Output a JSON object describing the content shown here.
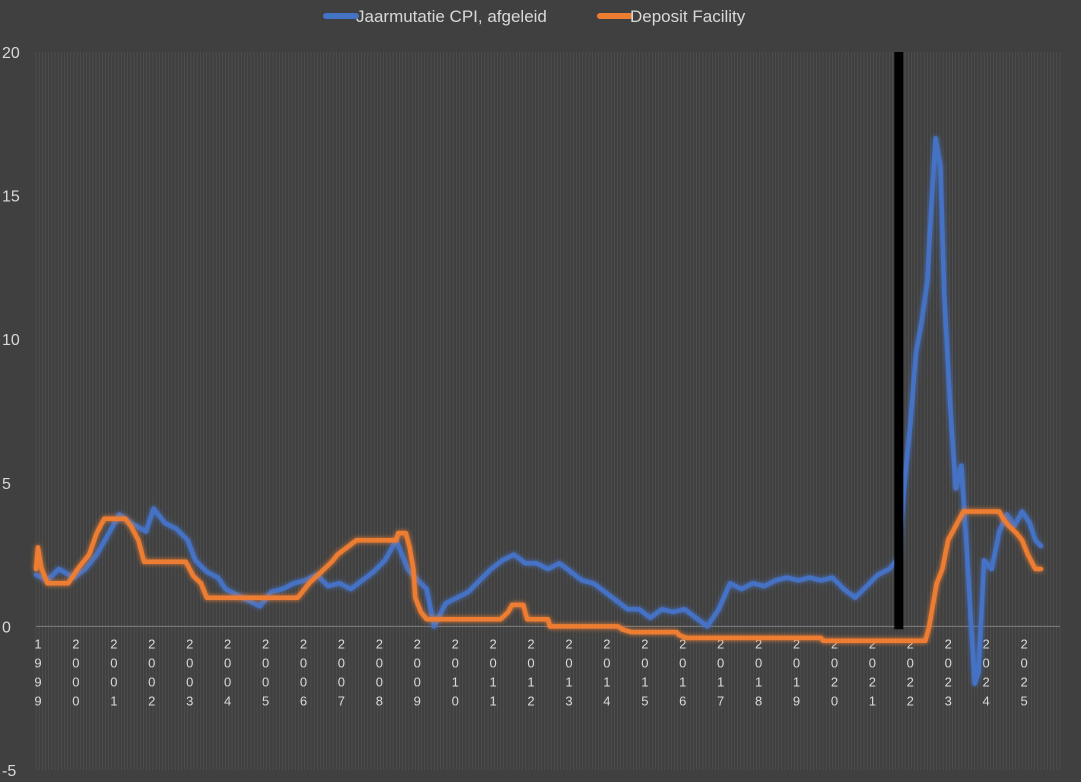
{
  "chart_data": {
    "type": "line",
    "title": "",
    "xlabel": "",
    "ylabel": "",
    "ylim": [
      -5,
      20
    ],
    "yticks": [
      -5,
      0,
      5,
      10,
      15,
      20
    ],
    "xlim": [
      1999,
      2026
    ],
    "x_tick_labels": [
      "1999",
      "2000",
      "2001",
      "2002",
      "2003",
      "2004",
      "2005",
      "2006",
      "2007",
      "2008",
      "2009",
      "2010",
      "2011",
      "2012",
      "2013",
      "2014",
      "2015",
      "2016",
      "2017",
      "2018",
      "2019",
      "2020",
      "2021",
      "2022",
      "2023",
      "2024",
      "2025"
    ],
    "grid": "vertical",
    "legend": "top",
    "annotation": {
      "type": "vertical-bar",
      "x": 2021.75,
      "color": "#000000"
    },
    "series": [
      {
        "name": "Jaarmutatie CPI, afgeleid",
        "color": "#4472c4",
        "points": [
          [
            1999.0,
            1.8
          ],
          [
            1999.3,
            1.6
          ],
          [
            1999.6,
            2.0
          ],
          [
            2000.0,
            1.7
          ],
          [
            2000.3,
            2.0
          ],
          [
            2000.6,
            2.5
          ],
          [
            2000.9,
            3.2
          ],
          [
            2001.2,
            3.9
          ],
          [
            2001.5,
            3.6
          ],
          [
            2001.9,
            3.3
          ],
          [
            2002.1,
            4.1
          ],
          [
            2002.4,
            3.6
          ],
          [
            2002.7,
            3.4
          ],
          [
            2003.0,
            3.0
          ],
          [
            2003.2,
            2.3
          ],
          [
            2003.5,
            1.9
          ],
          [
            2003.8,
            1.7
          ],
          [
            2004.0,
            1.3
          ],
          [
            2004.3,
            1.1
          ],
          [
            2004.6,
            0.9
          ],
          [
            2004.9,
            0.7
          ],
          [
            2005.2,
            1.2
          ],
          [
            2005.5,
            1.3
          ],
          [
            2005.8,
            1.5
          ],
          [
            2006.1,
            1.6
          ],
          [
            2006.4,
            1.8
          ],
          [
            2006.7,
            1.4
          ],
          [
            2007.0,
            1.5
          ],
          [
            2007.3,
            1.3
          ],
          [
            2007.6,
            1.6
          ],
          [
            2007.9,
            1.9
          ],
          [
            2008.2,
            2.3
          ],
          [
            2008.5,
            3.0
          ],
          [
            2008.8,
            2.0
          ],
          [
            2009.0,
            1.7
          ],
          [
            2009.3,
            1.3
          ],
          [
            2009.5,
            0.0
          ],
          [
            2009.8,
            0.8
          ],
          [
            2010.1,
            1.0
          ],
          [
            2010.4,
            1.2
          ],
          [
            2010.7,
            1.6
          ],
          [
            2011.0,
            2.0
          ],
          [
            2011.3,
            2.3
          ],
          [
            2011.6,
            2.5
          ],
          [
            2011.9,
            2.2
          ],
          [
            2012.2,
            2.2
          ],
          [
            2012.5,
            2.0
          ],
          [
            2012.8,
            2.2
          ],
          [
            2013.1,
            1.9
          ],
          [
            2013.4,
            1.6
          ],
          [
            2013.7,
            1.5
          ],
          [
            2014.0,
            1.2
          ],
          [
            2014.3,
            0.9
          ],
          [
            2014.6,
            0.6
          ],
          [
            2014.9,
            0.6
          ],
          [
            2015.2,
            0.3
          ],
          [
            2015.5,
            0.6
          ],
          [
            2015.8,
            0.5
          ],
          [
            2016.1,
            0.6
          ],
          [
            2016.4,
            0.3
          ],
          [
            2016.7,
            0.0
          ],
          [
            2017.0,
            0.6
          ],
          [
            2017.3,
            1.5
          ],
          [
            2017.6,
            1.3
          ],
          [
            2017.9,
            1.5
          ],
          [
            2018.2,
            1.4
          ],
          [
            2018.5,
            1.6
          ],
          [
            2018.8,
            1.7
          ],
          [
            2019.1,
            1.6
          ],
          [
            2019.4,
            1.7
          ],
          [
            2019.7,
            1.6
          ],
          [
            2020.0,
            1.7
          ],
          [
            2020.3,
            1.3
          ],
          [
            2020.6,
            1.0
          ],
          [
            2020.9,
            1.4
          ],
          [
            2021.2,
            1.8
          ],
          [
            2021.5,
            2.0
          ],
          [
            2021.75,
            2.4
          ],
          [
            2021.9,
            5.0
          ],
          [
            2022.05,
            7.0
          ],
          [
            2022.2,
            9.5
          ],
          [
            2022.35,
            10.6
          ],
          [
            2022.5,
            12.0
          ],
          [
            2022.6,
            14.5
          ],
          [
            2022.72,
            17.0
          ],
          [
            2022.85,
            16.0
          ],
          [
            2022.95,
            11.5
          ],
          [
            2023.1,
            7.8
          ],
          [
            2023.25,
            4.8
          ],
          [
            2023.4,
            5.6
          ],
          [
            2023.55,
            2.5
          ],
          [
            2023.65,
            0.2
          ],
          [
            2023.75,
            -2.0
          ],
          [
            2023.85,
            -1.6
          ],
          [
            2024.0,
            2.3
          ],
          [
            2024.2,
            2.0
          ],
          [
            2024.4,
            3.3
          ],
          [
            2024.6,
            3.9
          ],
          [
            2024.8,
            3.5
          ],
          [
            2025.0,
            4.0
          ],
          [
            2025.2,
            3.6
          ],
          [
            2025.35,
            3.0
          ],
          [
            2025.5,
            2.8
          ]
        ]
      },
      {
        "name": "Deposit Facility",
        "color": "#ed7d31",
        "points": [
          [
            1999.0,
            2.0
          ],
          [
            1999.05,
            2.75
          ],
          [
            1999.15,
            2.0
          ],
          [
            1999.3,
            1.5
          ],
          [
            1999.85,
            1.5
          ],
          [
            2000.1,
            2.0
          ],
          [
            2000.4,
            2.5
          ],
          [
            2000.6,
            3.25
          ],
          [
            2000.8,
            3.75
          ],
          [
            2001.35,
            3.75
          ],
          [
            2001.5,
            3.5
          ],
          [
            2001.7,
            3.0
          ],
          [
            2001.85,
            2.25
          ],
          [
            2002.95,
            2.25
          ],
          [
            2003.15,
            1.75
          ],
          [
            2003.35,
            1.5
          ],
          [
            2003.5,
            1.0
          ],
          [
            2005.9,
            1.0
          ],
          [
            2006.2,
            1.5
          ],
          [
            2006.4,
            1.75
          ],
          [
            2006.6,
            2.0
          ],
          [
            2006.8,
            2.25
          ],
          [
            2006.95,
            2.5
          ],
          [
            2007.2,
            2.75
          ],
          [
            2007.45,
            3.0
          ],
          [
            2008.5,
            3.0
          ],
          [
            2008.55,
            3.25
          ],
          [
            2008.75,
            3.25
          ],
          [
            2008.85,
            2.75
          ],
          [
            2008.95,
            2.0
          ],
          [
            2009.0,
            1.0
          ],
          [
            2009.15,
            0.5
          ],
          [
            2009.3,
            0.25
          ],
          [
            2011.25,
            0.25
          ],
          [
            2011.45,
            0.5
          ],
          [
            2011.55,
            0.75
          ],
          [
            2011.85,
            0.75
          ],
          [
            2011.95,
            0.25
          ],
          [
            2012.5,
            0.25
          ],
          [
            2012.55,
            0.0
          ],
          [
            2014.35,
            0.0
          ],
          [
            2014.45,
            -0.1
          ],
          [
            2014.7,
            -0.2
          ],
          [
            2015.9,
            -0.2
          ],
          [
            2015.95,
            -0.3
          ],
          [
            2016.15,
            -0.4
          ],
          [
            2019.7,
            -0.4
          ],
          [
            2019.75,
            -0.5
          ],
          [
            2022.45,
            -0.5
          ],
          [
            2022.55,
            0.0
          ],
          [
            2022.65,
            0.75
          ],
          [
            2022.75,
            1.5
          ],
          [
            2022.9,
            2.0
          ],
          [
            2023.05,
            3.0
          ],
          [
            2023.25,
            3.5
          ],
          [
            2023.45,
            4.0
          ],
          [
            2024.4,
            4.0
          ],
          [
            2024.5,
            3.75
          ],
          [
            2024.65,
            3.5
          ],
          [
            2024.85,
            3.25
          ],
          [
            2025.0,
            3.0
          ],
          [
            2025.15,
            2.5
          ],
          [
            2025.35,
            2.0
          ],
          [
            2025.5,
            2.0
          ]
        ]
      }
    ]
  }
}
